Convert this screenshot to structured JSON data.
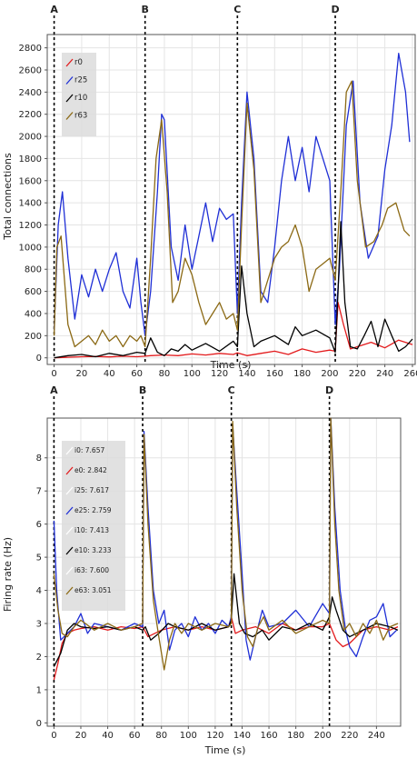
{
  "chart_data": [
    {
      "type": "line",
      "xlabel": "Time (s)",
      "ylabel": "Total connections",
      "xlim": [
        -5,
        262
      ],
      "ylim": [
        -60,
        2920
      ],
      "xticks": [
        0,
        20,
        40,
        60,
        80,
        100,
        120,
        140,
        160,
        180,
        200,
        220,
        240,
        260
      ],
      "yticks": [
        0,
        200,
        400,
        600,
        800,
        1000,
        1200,
        1400,
        1600,
        1800,
        2000,
        2200,
        2400,
        2600,
        2800
      ],
      "grid": true,
      "legend_position": "top-left",
      "events": [
        {
          "label": "A",
          "x": 0
        },
        {
          "label": "B",
          "x": 66
        },
        {
          "label": "C",
          "x": 133
        },
        {
          "label": "D",
          "x": 204
        }
      ],
      "series": [
        {
          "name": "r0",
          "color": "#e31a1c",
          "x": [
            0,
            10,
            20,
            30,
            40,
            50,
            60,
            66,
            70,
            80,
            90,
            100,
            110,
            120,
            130,
            133,
            140,
            150,
            160,
            170,
            180,
            190,
            200,
            204,
            206,
            210,
            215,
            220,
            230,
            240,
            250,
            260
          ],
          "y": [
            0,
            5,
            10,
            12,
            8,
            15,
            10,
            15,
            20,
            25,
            20,
            35,
            25,
            40,
            30,
            45,
            20,
            40,
            60,
            30,
            80,
            50,
            70,
            60,
            500,
            300,
            80,
            100,
            140,
            90,
            160,
            120
          ]
        },
        {
          "name": "r25",
          "color": "#1f2fd6",
          "x": [
            0,
            3,
            6,
            10,
            15,
            20,
            25,
            30,
            35,
            40,
            45,
            50,
            55,
            60,
            63,
            66,
            70,
            75,
            78,
            80,
            85,
            90,
            95,
            100,
            105,
            110,
            115,
            120,
            125,
            130,
            133,
            136,
            140,
            145,
            150,
            155,
            160,
            165,
            170,
            175,
            180,
            185,
            190,
            195,
            200,
            204,
            207,
            212,
            217,
            222,
            228,
            235,
            240,
            245,
            250,
            255,
            258
          ],
          "y": [
            250,
            1200,
            1500,
            900,
            350,
            750,
            550,
            800,
            600,
            800,
            950,
            600,
            450,
            900,
            500,
            200,
            600,
            1500,
            2200,
            2150,
            1000,
            700,
            1200,
            800,
            1100,
            1400,
            1050,
            1350,
            1250,
            1300,
            400,
            1400,
            2400,
            1800,
            600,
            500,
            1000,
            1600,
            2000,
            1600,
            1900,
            1500,
            2000,
            1800,
            1600,
            300,
            800,
            2100,
            2500,
            1400,
            900,
            1100,
            1700,
            2100,
            2750,
            2400,
            1950
          ]
        },
        {
          "name": "r10",
          "color": "#000000",
          "x": [
            0,
            10,
            20,
            30,
            40,
            50,
            60,
            66,
            70,
            75,
            80,
            85,
            90,
            95,
            100,
            110,
            120,
            130,
            133,
            136,
            140,
            145,
            150,
            160,
            170,
            175,
            180,
            190,
            200,
            204,
            206,
            208,
            211,
            215,
            220,
            225,
            230,
            235,
            240,
            245,
            250,
            255,
            260
          ],
          "y": [
            0,
            20,
            30,
            10,
            40,
            20,
            50,
            40,
            180,
            50,
            20,
            80,
            60,
            120,
            70,
            130,
            60,
            150,
            100,
            830,
            400,
            100,
            150,
            200,
            120,
            280,
            200,
            250,
            180,
            50,
            600,
            1230,
            500,
            100,
            80,
            200,
            330,
            100,
            350,
            200,
            60,
            100,
            170
          ]
        },
        {
          "name": "r63",
          "color": "#8b6914",
          "x": [
            0,
            2,
            5,
            10,
            15,
            20,
            25,
            30,
            35,
            40,
            45,
            50,
            55,
            60,
            63,
            66,
            70,
            74,
            78,
            82,
            86,
            90,
            95,
            100,
            105,
            110,
            115,
            120,
            125,
            130,
            133,
            136,
            140,
            145,
            150,
            155,
            160,
            165,
            170,
            175,
            180,
            185,
            190,
            195,
            200,
            204,
            208,
            212,
            216,
            220,
            226,
            232,
            238,
            242,
            248,
            254,
            258
          ],
          "y": [
            200,
            1000,
            1100,
            300,
            100,
            150,
            200,
            120,
            250,
            150,
            200,
            100,
            200,
            150,
            200,
            100,
            900,
            1800,
            2150,
            1500,
            500,
            600,
            900,
            750,
            500,
            300,
            400,
            500,
            350,
            400,
            250,
            1200,
            2300,
            1700,
            500,
            700,
            900,
            1000,
            1050,
            1200,
            1000,
            600,
            800,
            850,
            900,
            700,
            1500,
            2400,
            2500,
            1600,
            1000,
            1050,
            1200,
            1350,
            1400,
            1150,
            1100
          ]
        }
      ]
    },
    {
      "type": "line",
      "xlabel": "Time (s)",
      "ylabel": "Firing rate (Hz)",
      "xlim": [
        -5,
        258
      ],
      "ylim": [
        -0.1,
        9.2
      ],
      "xticks": [
        0,
        20,
        40,
        60,
        80,
        100,
        120,
        140,
        160,
        180,
        200,
        220,
        240
      ],
      "yticks": [
        0,
        1,
        2,
        3,
        4,
        5,
        6,
        7,
        8
      ],
      "grid": true,
      "legend_position": "top-left",
      "events": [
        {
          "label": "A",
          "x": 0
        },
        {
          "label": "B",
          "x": 66
        },
        {
          "label": "C",
          "x": 132
        },
        {
          "label": "D",
          "x": 205
        }
      ],
      "series": [
        {
          "name": "i0: 7.657",
          "color": "#ffffff",
          "x": [],
          "y": []
        },
        {
          "name": "e0: 2.842",
          "color": "#e31a1c",
          "x": [
            0,
            3,
            6,
            10,
            15,
            20,
            30,
            40,
            50,
            60,
            66,
            70,
            80,
            90,
            100,
            110,
            120,
            130,
            132,
            135,
            140,
            150,
            160,
            170,
            180,
            190,
            200,
            205,
            210,
            215,
            220,
            230,
            240,
            250,
            256
          ],
          "y": [
            1.3,
            1.8,
            2.4,
            2.7,
            2.8,
            2.85,
            2.9,
            2.8,
            2.9,
            2.85,
            2.9,
            2.6,
            2.8,
            2.9,
            2.8,
            2.9,
            2.8,
            2.9,
            3.2,
            2.7,
            2.8,
            2.9,
            2.7,
            3.0,
            2.8,
            2.9,
            2.9,
            3.0,
            2.5,
            2.3,
            2.4,
            2.8,
            2.9,
            2.8,
            2.9
          ]
        },
        {
          "name": "i25: 7.617",
          "color": "#ffffff",
          "x": [],
          "y": []
        },
        {
          "name": "e25: 2.759",
          "color": "#1f2fd6",
          "x": [
            0,
            2,
            5,
            10,
            15,
            20,
            25,
            30,
            40,
            50,
            60,
            66,
            67,
            70,
            74,
            78,
            82,
            86,
            90,
            95,
            100,
            105,
            110,
            115,
            120,
            125,
            130,
            132,
            133,
            136,
            140,
            143,
            146,
            150,
            155,
            160,
            170,
            180,
            190,
            200,
            205,
            206,
            209,
            213,
            217,
            220,
            225,
            230,
            235,
            240,
            245,
            250,
            255
          ],
          "y": [
            6.1,
            4.0,
            2.5,
            2.7,
            2.9,
            3.3,
            2.7,
            3.0,
            2.9,
            2.8,
            3.0,
            2.9,
            8.8,
            6.5,
            4.0,
            3.0,
            3.4,
            2.2,
            2.8,
            3.0,
            2.6,
            3.2,
            2.8,
            3.0,
            2.7,
            3.1,
            2.9,
            3.2,
            9.0,
            7.0,
            4.5,
            2.5,
            1.9,
            2.6,
            3.4,
            2.9,
            3.0,
            3.4,
            2.9,
            3.6,
            3.3,
            9.2,
            6.5,
            4.0,
            2.8,
            2.3,
            2.0,
            2.6,
            3.1,
            3.2,
            3.6,
            2.6,
            2.8
          ]
        },
        {
          "name": "i10: 7.413",
          "color": "#ffffff",
          "x": [],
          "y": []
        },
        {
          "name": "e10: 3.233",
          "color": "#000000",
          "x": [
            0,
            5,
            10,
            15,
            20,
            30,
            40,
            50,
            60,
            66,
            68,
            72,
            78,
            85,
            90,
            100,
            110,
            120,
            130,
            132,
            134,
            138,
            142,
            148,
            155,
            160,
            170,
            180,
            190,
            200,
            205,
            207,
            210,
            215,
            220,
            230,
            240,
            250,
            256
          ],
          "y": [
            1.7,
            2.1,
            2.8,
            3.0,
            2.9,
            2.85,
            2.9,
            2.8,
            2.9,
            2.8,
            2.9,
            2.5,
            2.7,
            3.0,
            2.9,
            2.8,
            3.0,
            2.8,
            2.9,
            3.1,
            4.5,
            3.0,
            2.7,
            2.6,
            2.8,
            2.5,
            2.9,
            2.8,
            3.0,
            2.8,
            3.2,
            3.8,
            3.4,
            2.8,
            2.6,
            2.8,
            3.0,
            2.9,
            2.8
          ]
        },
        {
          "name": "i63: 7.600",
          "color": "#ffffff",
          "x": [],
          "y": []
        },
        {
          "name": "e63: 3.051",
          "color": "#8b6914",
          "x": [
            0,
            3,
            6,
            10,
            15,
            20,
            30,
            40,
            50,
            60,
            66,
            67,
            70,
            74,
            78,
            82,
            86,
            90,
            95,
            100,
            110,
            120,
            130,
            132,
            133,
            136,
            140,
            144,
            148,
            152,
            156,
            160,
            170,
            180,
            190,
            200,
            205,
            206,
            209,
            212,
            216,
            220,
            225,
            230,
            235,
            240,
            245,
            250,
            256
          ],
          "y": [
            4.5,
            3.4,
            2.7,
            2.6,
            2.9,
            3.1,
            2.8,
            3.0,
            2.8,
            2.9,
            3.0,
            8.7,
            6.0,
            3.7,
            2.6,
            1.6,
            2.5,
            3.0,
            2.7,
            3.0,
            2.8,
            3.0,
            2.9,
            3.0,
            9.1,
            6.5,
            4.0,
            2.6,
            2.3,
            2.9,
            3.2,
            2.8,
            3.1,
            2.7,
            2.9,
            3.1,
            3.0,
            9.2,
            6.0,
            4.0,
            2.8,
            3.0,
            2.6,
            3.0,
            2.7,
            3.1,
            2.5,
            2.9,
            3.0
          ]
        }
      ]
    }
  ]
}
